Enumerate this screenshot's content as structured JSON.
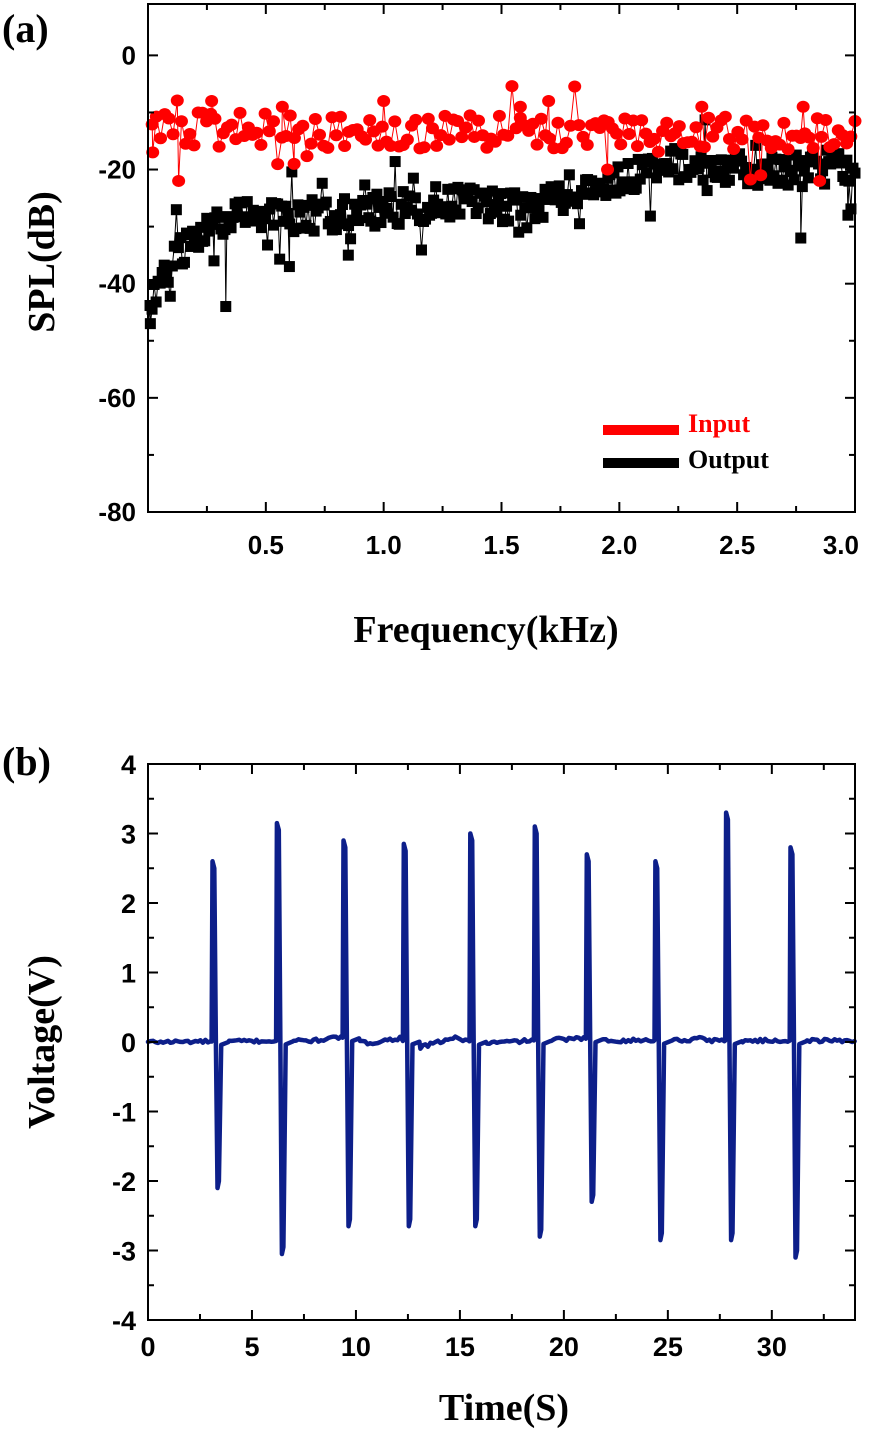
{
  "chart_data": [
    {
      "panel_label": "(a)",
      "type": "scatter",
      "xlabel": "Frequency(kHz)",
      "ylabel": "SPL(dB)",
      "xlim": [
        0,
        3.0
      ],
      "ylim": [
        -80,
        9
      ],
      "x_ticks": [
        0.5,
        1.0,
        1.5,
        2.0,
        2.5,
        3.0
      ],
      "x_tick_labels": [
        "0.5",
        "1.0",
        "1.5",
        "2.0",
        "2.5",
        "3.0"
      ],
      "y_ticks": [
        0,
        -20,
        -40,
        -60,
        -80
      ],
      "y_tick_labels": [
        "0",
        "-20",
        "-40",
        "-60",
        "-80"
      ],
      "legend_position": "bottom-right",
      "series": [
        {
          "name": "Input",
          "color": "#ff0000",
          "marker": "circle",
          "points_per_series": 170,
          "x_range": [
            0.0,
            3.0
          ],
          "trend": [
            [
              0.0,
              -13
            ],
            [
              0.5,
              -13
            ],
            [
              1.0,
              -13.5
            ],
            [
              1.5,
              -13.5
            ],
            [
              2.0,
              -14
            ],
            [
              2.5,
              -13.5
            ],
            [
              3.0,
              -14
            ]
          ],
          "noise_amplitude": 3,
          "notable_points": [
            [
              0.02,
              -17
            ],
            [
              0.13,
              -22
            ],
            [
              0.27,
              -8
            ],
            [
              0.57,
              -9
            ],
            [
              0.62,
              -19
            ],
            [
              1.0,
              -8
            ],
            [
              1.58,
              -9
            ],
            [
              1.7,
              -8
            ],
            [
              1.95,
              -20
            ],
            [
              2.35,
              -9
            ],
            [
              2.6,
              -21
            ],
            [
              2.78,
              -9
            ],
            [
              2.85,
              -22
            ]
          ]
        },
        {
          "name": "Output",
          "color": "#000000",
          "marker": "square",
          "points_per_series": 350,
          "x_range": [
            0.0,
            3.0
          ],
          "trend": [
            [
              0.0,
              -46
            ],
            [
              0.05,
              -40
            ],
            [
              0.1,
              -36
            ],
            [
              0.2,
              -32
            ],
            [
              0.3,
              -29
            ],
            [
              0.5,
              -28
            ],
            [
              0.8,
              -28
            ],
            [
              1.0,
              -27
            ],
            [
              1.2,
              -26
            ],
            [
              1.4,
              -26
            ],
            [
              1.6,
              -27
            ],
            [
              1.8,
              -25
            ],
            [
              2.0,
              -22
            ],
            [
              2.2,
              -19
            ],
            [
              2.5,
              -20
            ],
            [
              2.8,
              -20
            ],
            [
              3.0,
              -19
            ]
          ],
          "noise_amplitude": 3,
          "notable_points": [
            [
              0.0,
              -48
            ],
            [
              0.01,
              -47
            ],
            [
              0.33,
              -44
            ],
            [
              0.28,
              -36
            ],
            [
              0.6,
              -37
            ],
            [
              0.85,
              -35
            ],
            [
              2.77,
              -32
            ],
            [
              2.97,
              -28
            ]
          ]
        }
      ]
    },
    {
      "panel_label": "(b)",
      "type": "line",
      "xlabel": "Time(S)",
      "ylabel": "Voltage(V)",
      "xlim": [
        0,
        34
      ],
      "ylim": [
        -4,
        4
      ],
      "x_ticks": [
        0,
        5,
        10,
        15,
        20,
        25,
        30
      ],
      "x_tick_labels": [
        "0",
        "5",
        "10",
        "15",
        "20",
        "25",
        "30"
      ],
      "y_ticks": [
        4,
        3,
        2,
        1,
        0,
        -1,
        -2,
        -3,
        -4
      ],
      "y_tick_labels": [
        "4",
        "3",
        "2",
        "1",
        "0",
        "-1",
        "-2",
        "-3",
        "-4"
      ],
      "series": [
        {
          "name": "Voltage",
          "color": "#0d1f8a",
          "baseline": 0,
          "pulses": [
            {
              "t": 3.1,
              "peak": 2.6,
              "trough": -2.1
            },
            {
              "t": 6.2,
              "peak": 3.15,
              "trough": -3.05
            },
            {
              "t": 9.4,
              "peak": 2.9,
              "trough": -2.65
            },
            {
              "t": 12.3,
              "peak": 2.85,
              "trough": -2.65
            },
            {
              "t": 15.5,
              "peak": 3.0,
              "trough": -2.65
            },
            {
              "t": 18.6,
              "peak": 3.1,
              "trough": -2.8
            },
            {
              "t": 21.1,
              "peak": 2.7,
              "trough": -2.3
            },
            {
              "t": 24.4,
              "peak": 2.6,
              "trough": -2.85
            },
            {
              "t": 27.8,
              "peak": 3.3,
              "trough": -2.85
            },
            {
              "t": 30.9,
              "peak": 2.8,
              "trough": -3.1
            }
          ]
        }
      ]
    }
  ]
}
